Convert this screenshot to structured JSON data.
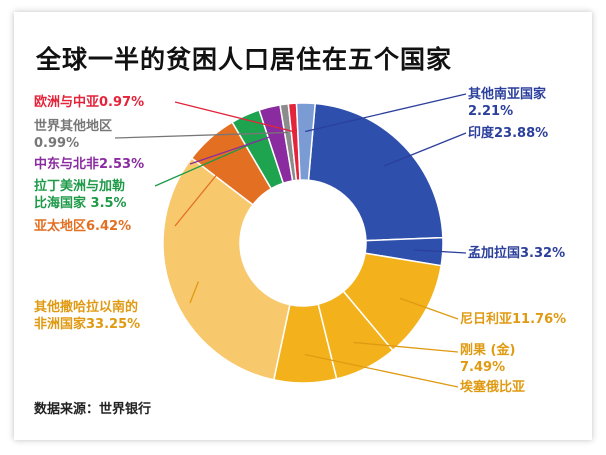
{
  "chart_data": {
    "type": "pie",
    "title": "全球一半的贫困人口居住在五个国家",
    "source": "数据来源：世界银行",
    "slices": [
      {
        "label": "印度",
        "value": 23.88,
        "label_text": "印度23.88%",
        "color": "#2f4fad",
        "label_color": "#2b3f9c"
      },
      {
        "label": "孟加拉国",
        "value": 3.32,
        "label_text": "孟加拉国3.32%",
        "color": "#2f4fad",
        "label_color": "#2b3f9c"
      },
      {
        "label": "尼日利亚",
        "value": 11.76,
        "label_text": "尼日利亚11.76%",
        "color": "#f3b21c",
        "label_color": "#e09a12"
      },
      {
        "label": "刚果（金）",
        "value": 7.49,
        "label_text": "刚果 (金)|7.49%",
        "color": "#f3b21c",
        "label_color": "#e09a12"
      },
      {
        "label": "埃塞俄比亚",
        "value": 7.49,
        "label_text": "埃塞俄比亚",
        "color": "#f3b21c",
        "label_color": "#e09a12"
      },
      {
        "label": "其他撒哈拉以南的非洲国家",
        "value": 33.25,
        "label_text": "其他撒哈拉以南的|非洲国家33.25%",
        "color": "#f8c86c",
        "label_color": "#e09a12"
      },
      {
        "label": "亚太地区",
        "value": 6.42,
        "label_text": "亚太地区6.42%",
        "color": "#e36f22",
        "label_color": "#e36f22"
      },
      {
        "label": "拉丁美洲与加勒比海国家",
        "value": 3.5,
        "label_text": "拉丁美洲与加勒|比海国家 3.5%",
        "color": "#1ea44f",
        "label_color": "#1e9a48"
      },
      {
        "label": "中东与北非",
        "value": 2.53,
        "label_text": "中东与北非2.53%",
        "color": "#8a2ba0",
        "label_color": "#8a2ba0"
      },
      {
        "label": "世界其他地区",
        "value": 0.99,
        "label_text": "世界其他地区|0.99%",
        "color": "#8c8c8c",
        "label_color": "#777777"
      },
      {
        "label": "欧洲与中亚",
        "value": 0.97,
        "label_text": "欧洲与中亚0.97%",
        "color": "#e3243b",
        "label_color": "#e3243b"
      },
      {
        "label": "其他南亚国家",
        "value": 2.21,
        "label_text": "其他南亚国家|2.21%",
        "color": "#7b9bd4",
        "label_color": "#2b3f9c"
      }
    ]
  }
}
